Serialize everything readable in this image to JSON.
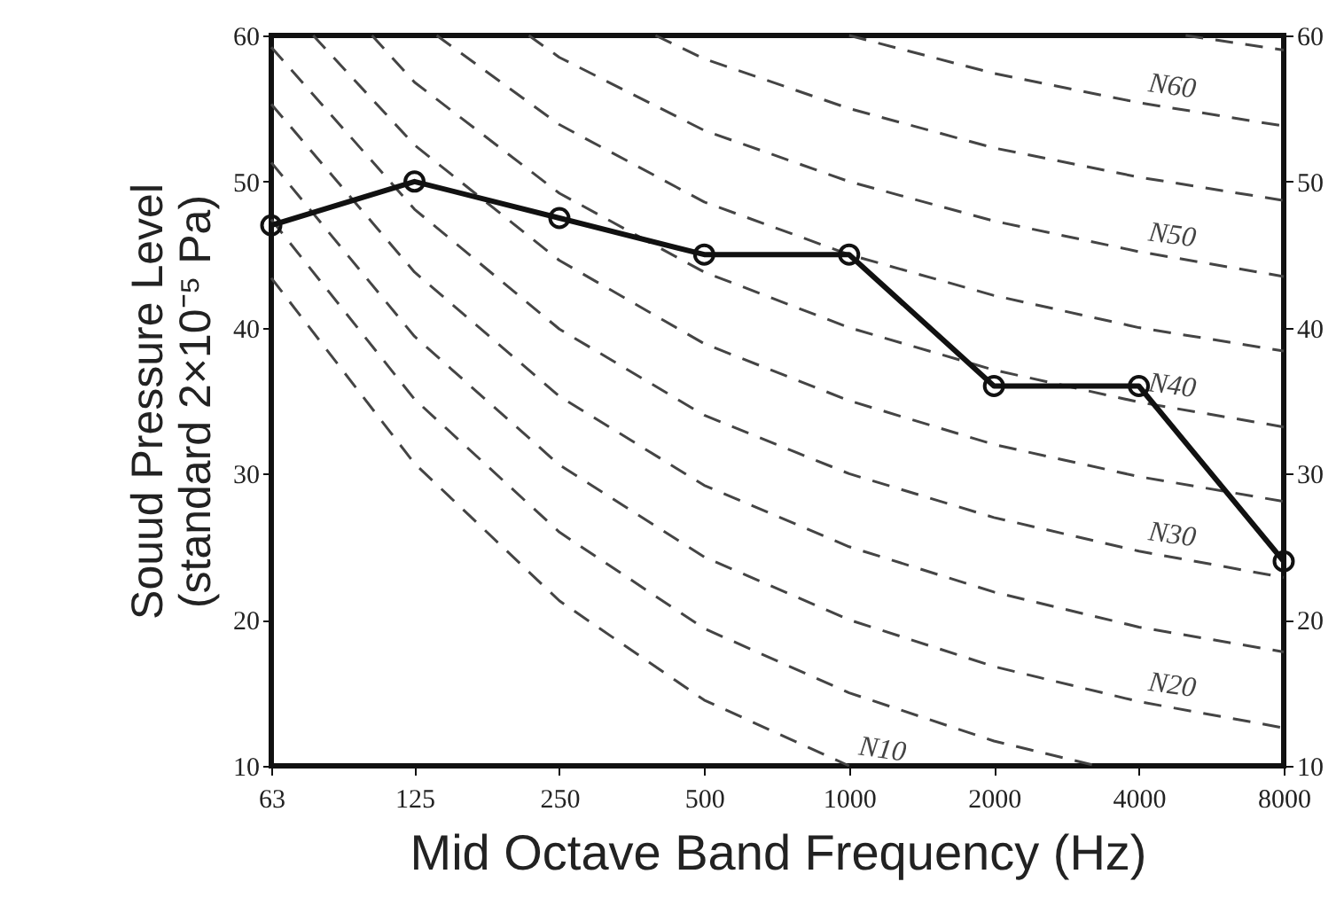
{
  "chart_data": {
    "type": "line",
    "xlabel": "Mid Octave Band Frequency (Hz)",
    "ylabel": "Souud  Pressure Level\n(standard 2×10⁻⁵ Pa)",
    "log": "x",
    "xlim": [
      63,
      8000
    ],
    "xticks": [
      63,
      125,
      250,
      500,
      1000,
      2000,
      4000,
      8000
    ],
    "ylim": [
      10,
      60
    ],
    "yticks": [
      10,
      20,
      30,
      40,
      50,
      60
    ],
    "y2lim": [
      10,
      60
    ],
    "y2ticks": [
      10,
      20,
      30,
      40,
      50,
      60
    ],
    "grid": false,
    "series": [
      {
        "name": "N10",
        "color": "#444444",
        "line_style": "dashed",
        "x": [
          63,
          125,
          250,
          500,
          1000
        ],
        "values": [
          43.4,
          30.7,
          21.3,
          14.5,
          10
        ]
      },
      {
        "color": "#444444",
        "line_style": "dashed",
        "x": [
          63,
          125,
          250,
          500,
          1000,
          2000,
          3268
        ],
        "values": [
          47.4,
          35.1,
          26,
          19.4,
          15,
          11.7,
          10
        ]
      },
      {
        "name": "N20",
        "color": "#444444",
        "line_style": "dashed",
        "x": [
          63,
          125,
          250,
          500,
          1000,
          2000,
          4000,
          8000
        ],
        "values": [
          51.3,
          39.4,
          30.6,
          24.3,
          20,
          16.8,
          14.4,
          12.6
        ]
      },
      {
        "color": "#444444",
        "line_style": "dashed",
        "x": [
          63,
          125,
          250,
          500,
          1000,
          2000,
          4000,
          8000
        ],
        "values": [
          55.3,
          43.8,
          35.3,
          29.2,
          25,
          21.9,
          19.5,
          17.8
        ]
      },
      {
        "name": "N30",
        "color": "#444444",
        "line_style": "dashed",
        "x": [
          63,
          125,
          250,
          500,
          1000,
          2000,
          4000,
          8000
        ],
        "values": [
          59.2,
          48.1,
          39.9,
          34,
          30,
          27,
          24.7,
          22.9
        ]
      },
      {
        "color": "#444444",
        "line_style": "dashed",
        "x": [
          77,
          125,
          250,
          500,
          1000,
          2000,
          4000,
          8000
        ],
        "values": [
          60,
          52.5,
          44.6,
          38.9,
          35,
          32,
          29.8,
          28.1
        ]
      },
      {
        "name": "N40",
        "color": "#444444",
        "line_style": "dashed",
        "x": [
          102,
          125,
          250,
          500,
          1000,
          2000,
          4000,
          8000
        ],
        "values": [
          60,
          56.8,
          49.2,
          43.8,
          40,
          37.1,
          34.9,
          33.2
        ]
      },
      {
        "color": "#444444",
        "line_style": "dashed",
        "x": [
          139,
          250,
          500,
          1000,
          2000,
          4000,
          8000
        ],
        "values": [
          60,
          53.9,
          48.6,
          45,
          42.2,
          40,
          38.4
        ]
      },
      {
        "name": "N50",
        "color": "#444444",
        "line_style": "dashed",
        "x": [
          216,
          250,
          500,
          1000,
          2000,
          4000,
          8000
        ],
        "values": [
          60,
          58.5,
          53.5,
          50,
          47.3,
          45.2,
          43.5
        ]
      },
      {
        "color": "#444444",
        "line_style": "dashed",
        "x": [
          396,
          500,
          1000,
          2000,
          4000,
          8000
        ],
        "values": [
          60,
          58.4,
          55,
          52.3,
          50.3,
          48.7
        ]
      },
      {
        "name": "N60",
        "color": "#444444",
        "line_style": "dashed",
        "x": [
          1000,
          2000,
          4000,
          8000
        ],
        "values": [
          60,
          57.4,
          55.4,
          53.8
        ]
      },
      {
        "color": "#444444",
        "line_style": "dashed",
        "x": [
          5004,
          8000
        ],
        "values": [
          60,
          59
        ]
      },
      {
        "color": "#111111",
        "line_style": "solid",
        "marker": "circle",
        "x": [
          63,
          125,
          250,
          500,
          1000,
          2000,
          4000,
          8000
        ],
        "values": [
          47,
          50,
          47.5,
          45,
          45,
          36,
          36,
          24
        ]
      }
    ]
  }
}
